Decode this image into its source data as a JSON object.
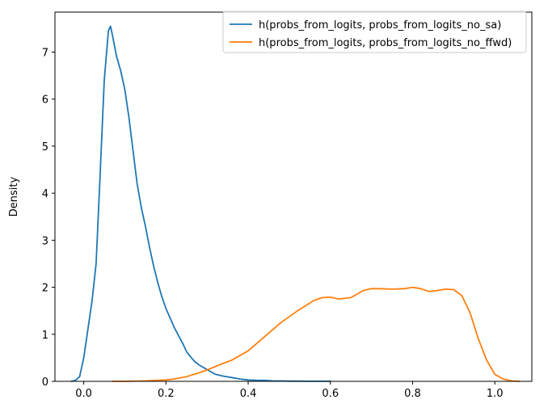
{
  "chart_data": {
    "type": "line",
    "title": "",
    "xlabel": "",
    "ylabel": "Density",
    "xlim": [
      -0.07,
      1.09
    ],
    "ylim": [
      0,
      7.85
    ],
    "xticks": [
      0.0,
      0.2,
      0.4,
      0.6,
      0.8,
      1.0
    ],
    "xtick_labels": [
      "0.0",
      "0.2",
      "0.4",
      "0.6",
      "0.8",
      "1.0"
    ],
    "yticks": [
      0,
      1,
      2,
      3,
      4,
      5,
      6,
      7
    ],
    "ytick_labels": [
      "0",
      "1",
      "2",
      "3",
      "4",
      "5",
      "6",
      "7"
    ],
    "grid": false,
    "legend_position": "upper-right",
    "series": [
      {
        "name": "h(probs_from_logits, probs_from_logits_no_sa)",
        "color": "#1f77b4",
        "x": [
          -0.03,
          -0.02,
          -0.01,
          0.0,
          0.01,
          0.02,
          0.03,
          0.04,
          0.05,
          0.06,
          0.065,
          0.07,
          0.08,
          0.09,
          0.1,
          0.11,
          0.12,
          0.13,
          0.14,
          0.15,
          0.16,
          0.17,
          0.18,
          0.19,
          0.2,
          0.21,
          0.22,
          0.23,
          0.24,
          0.25,
          0.26,
          0.27,
          0.28,
          0.29,
          0.3,
          0.31,
          0.32,
          0.33,
          0.34,
          0.36,
          0.38,
          0.4,
          0.42,
          0.44,
          0.46,
          0.5,
          0.55,
          0.6
        ],
        "y": [
          0.0,
          0.02,
          0.1,
          0.5,
          1.1,
          1.7,
          2.5,
          4.4,
          6.4,
          7.45,
          7.55,
          7.35,
          6.9,
          6.6,
          6.2,
          5.6,
          4.9,
          4.2,
          3.7,
          3.3,
          2.85,
          2.45,
          2.1,
          1.8,
          1.55,
          1.35,
          1.15,
          0.98,
          0.82,
          0.63,
          0.52,
          0.42,
          0.35,
          0.3,
          0.25,
          0.2,
          0.15,
          0.13,
          0.11,
          0.08,
          0.05,
          0.03,
          0.02,
          0.02,
          0.01,
          0.005,
          0.002,
          0.001
        ]
      },
      {
        "name": "h(probs_from_logits, probs_from_logits_no_ffwd)",
        "color": "#ff7f0e",
        "x": [
          0.07,
          0.1,
          0.15,
          0.2,
          0.22,
          0.25,
          0.28,
          0.3,
          0.33,
          0.36,
          0.4,
          0.44,
          0.48,
          0.52,
          0.56,
          0.58,
          0.6,
          0.62,
          0.65,
          0.68,
          0.7,
          0.72,
          0.75,
          0.78,
          0.8,
          0.82,
          0.84,
          0.86,
          0.88,
          0.9,
          0.92,
          0.94,
          0.96,
          0.98,
          1.0,
          1.02,
          1.04,
          1.06
        ],
        "y": [
          0.0,
          0.0,
          0.01,
          0.03,
          0.05,
          0.1,
          0.18,
          0.24,
          0.35,
          0.45,
          0.65,
          0.95,
          1.25,
          1.5,
          1.72,
          1.78,
          1.79,
          1.75,
          1.78,
          1.93,
          1.97,
          1.97,
          1.96,
          1.97,
          2.0,
          1.97,
          1.91,
          1.93,
          1.96,
          1.95,
          1.82,
          1.45,
          0.9,
          0.45,
          0.15,
          0.05,
          0.01,
          0.0
        ]
      }
    ]
  }
}
